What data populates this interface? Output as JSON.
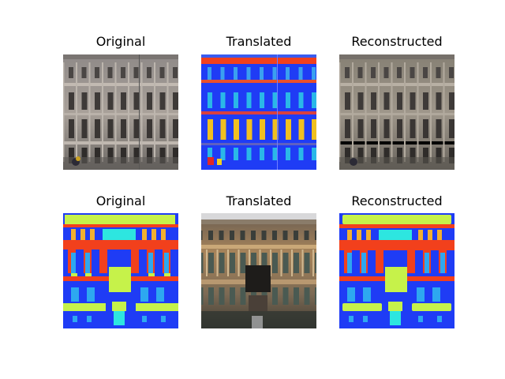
{
  "rows": [
    {
      "panels": [
        {
          "title": "Original",
          "image": "photo-building-facade"
        },
        {
          "title": "Translated",
          "image": "segmentation-map-facade"
        },
        {
          "title": "Reconstructed",
          "image": "photo-building-facade-reconstructed"
        }
      ]
    },
    {
      "panels": [
        {
          "title": "Original",
          "image": "segmentation-map-facade"
        },
        {
          "title": "Translated",
          "image": "photo-building-facade-generated"
        },
        {
          "title": "Reconstructed",
          "image": "segmentation-map-facade-reconstructed"
        }
      ]
    }
  ],
  "colors": {
    "seg_blue": "#1f3cf5",
    "seg_red": "#f2401c",
    "seg_yellow": "#c6f24a",
    "seg_cyan": "#2de6e0",
    "stone": "#a49a92",
    "window_dark": "#3c3838"
  }
}
